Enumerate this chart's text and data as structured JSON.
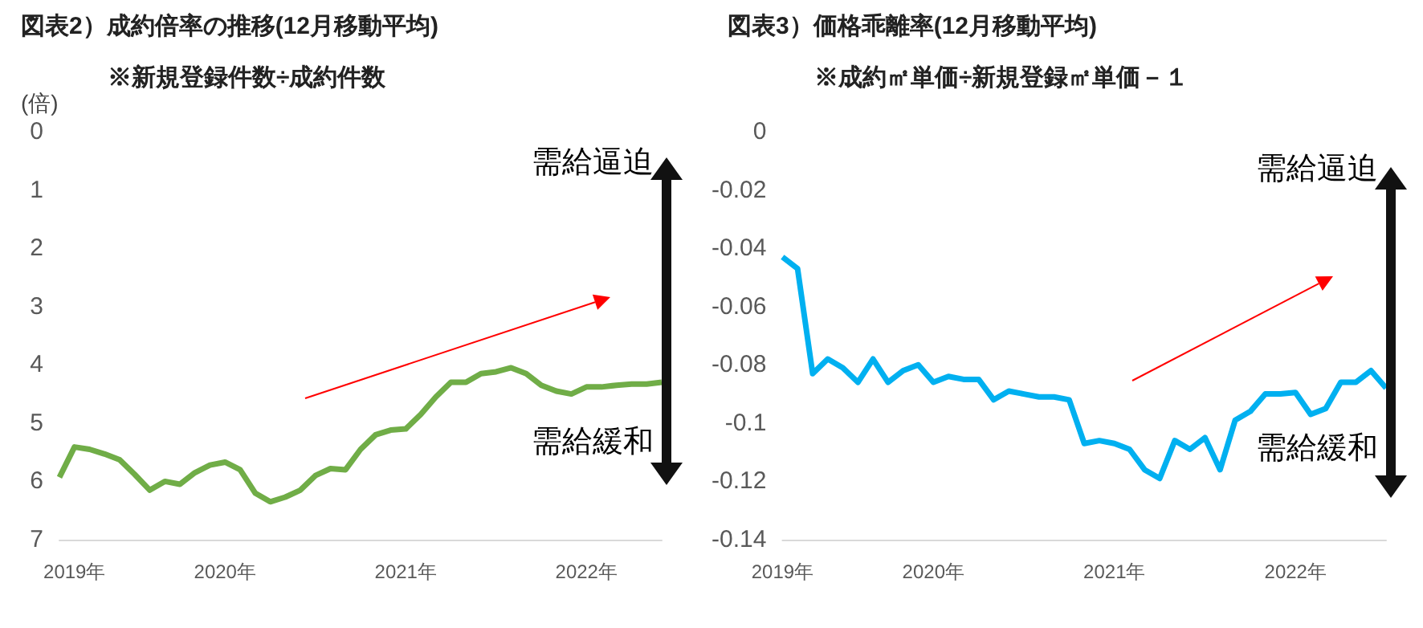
{
  "chart_data": [
    {
      "type": "line",
      "title": "図表2）成約倍率の推移(12月移動平均)",
      "subtitle": "※新規登録件数÷成約件数",
      "ylabel": "(倍)",
      "categories": [
        null,
        "2019年",
        null,
        null,
        null,
        null,
        null,
        null,
        null,
        null,
        null,
        "2020年",
        null,
        null,
        null,
        null,
        null,
        null,
        null,
        null,
        null,
        null,
        null,
        "2021年",
        null,
        null,
        null,
        null,
        null,
        null,
        null,
        null,
        null,
        null,
        null,
        "2022年",
        null,
        null,
        null,
        null,
        null
      ],
      "series": [
        {
          "color": "#70ad47",
          "values": [
            5.93,
            5.41,
            5.45,
            5.53,
            5.63,
            5.88,
            6.15,
            6.0,
            6.05,
            5.85,
            5.72,
            5.67,
            5.8,
            6.2,
            6.35,
            6.27,
            6.15,
            5.9,
            5.78,
            5.8,
            5.45,
            5.2,
            5.12,
            5.1,
            4.85,
            4.55,
            4.3,
            4.3,
            4.15,
            4.12,
            4.05,
            4.15,
            4.35,
            4.45,
            4.5,
            4.38,
            4.38,
            4.35,
            4.33,
            4.33,
            4.3
          ]
        }
      ],
      "ylim": [
        7,
        0
      ],
      "yticks": [
        0,
        1,
        2,
        3,
        4,
        5,
        6,
        7
      ],
      "grid": false,
      "annotations": [
        "需給逼迫",
        "需給緩和"
      ]
    },
    {
      "type": "line",
      "title": "図表3）価格乖離率(12月移動平均)",
      "subtitle": "※成約㎡単価÷新規登録㎡単価－１",
      "categories": [
        "2019年",
        null,
        null,
        null,
        null,
        null,
        null,
        null,
        null,
        null,
        "2020年",
        null,
        null,
        null,
        null,
        null,
        null,
        null,
        null,
        null,
        null,
        null,
        "2021年",
        null,
        null,
        null,
        null,
        null,
        null,
        null,
        null,
        null,
        null,
        null,
        "2022年",
        null,
        null,
        null,
        null,
        null,
        null
      ],
      "series": [
        {
          "color": "#00b0f0",
          "values": [
            -0.043,
            -0.047,
            -0.083,
            -0.078,
            -0.081,
            -0.086,
            -0.078,
            -0.086,
            -0.082,
            -0.08,
            -0.086,
            -0.084,
            -0.085,
            -0.085,
            -0.092,
            -0.089,
            -0.09,
            -0.091,
            -0.091,
            -0.092,
            -0.107,
            -0.106,
            -0.107,
            -0.109,
            -0.116,
            -0.119,
            -0.106,
            -0.109,
            -0.105,
            -0.116,
            -0.099,
            -0.096,
            -0.09,
            -0.09,
            -0.0895,
            -0.097,
            -0.095,
            -0.086,
            -0.086,
            -0.082,
            -0.088
          ]
        }
      ],
      "ylim": [
        -0.14,
        0
      ],
      "yticks": [
        0,
        -0.02,
        -0.04,
        -0.06,
        -0.08,
        -0.1,
        -0.12,
        -0.14
      ],
      "grid": false,
      "annotations": [
        "需給逼迫",
        "需給緩和"
      ]
    }
  ]
}
